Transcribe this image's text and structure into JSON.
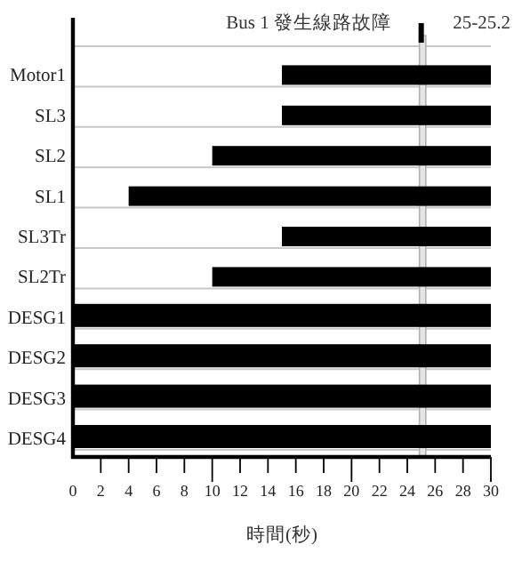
{
  "chart_data": {
    "type": "bar",
    "orientation": "horizontal",
    "color": "#000000",
    "categories": [
      "Motor1",
      "SL3",
      "SL2",
      "SL1",
      "SL3Tr",
      "SL2Tr",
      "DESG1",
      "DESG2",
      "DESG3",
      "DESG4"
    ],
    "base": [
      15,
      15,
      10,
      4,
      15,
      10,
      0,
      0,
      0,
      0
    ],
    "values": [
      15,
      15,
      20,
      26,
      15,
      20,
      30,
      30,
      30,
      30
    ],
    "xlim": [
      0,
      30
    ],
    "xticks": [
      0,
      2,
      4,
      6,
      8,
      10,
      12,
      14,
      16,
      18,
      20,
      22,
      24,
      26,
      28,
      30
    ],
    "xlabel": "時間(秒)",
    "grid": "y",
    "bands": [
      {
        "axis": "x",
        "from": 25,
        "to": 25.2,
        "label": "25-25.2",
        "color": "#b0b0b0"
      }
    ],
    "annotations": [
      "Bus 1 發生線路故障"
    ]
  }
}
